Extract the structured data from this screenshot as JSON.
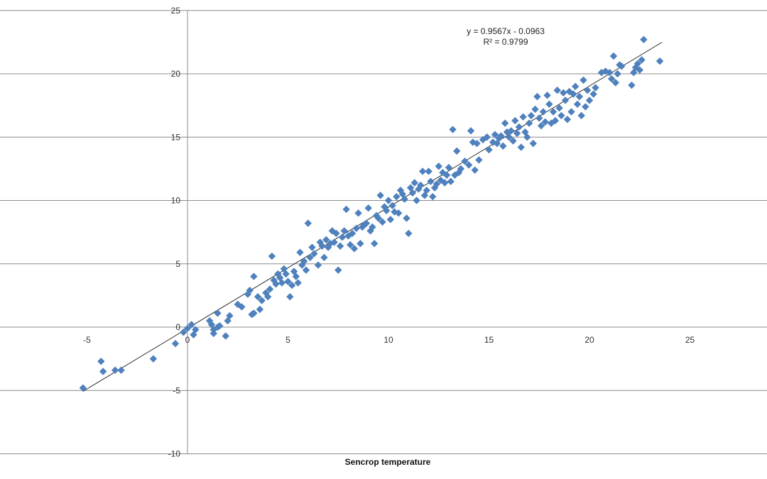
{
  "chart_data": {
    "type": "scatter",
    "title": "",
    "xlabel": "Sencrop temperature",
    "ylabel": "",
    "xlim": [
      -10,
      30
    ],
    "ylim": [
      -10,
      25
    ],
    "x_tick_labels": [
      "-5",
      "0",
      "5",
      "10",
      "15",
      "20",
      "25"
    ],
    "y_tick_labels": [
      "-10",
      "-5",
      "0",
      "5",
      "10",
      "15",
      "20",
      "25"
    ],
    "grid": "horizontal",
    "legend": "none",
    "marker": "diamond",
    "marker_color": "#4F81BD",
    "trendline": {
      "type": "linear",
      "slope": 0.9567,
      "intercept": -0.0963,
      "equation_label": "y = 0.9567x - 0.0963",
      "r2_label": "R² = 0.9799",
      "x_range": [
        -5.2,
        23.6
      ],
      "color": "#333333"
    },
    "series": [
      {
        "points": [
          [
            -5.2,
            -4.8
          ],
          [
            -4.3,
            -2.7
          ],
          [
            -4.2,
            -3.5
          ],
          [
            -3.6,
            -3.4
          ],
          [
            -3.3,
            -3.4
          ],
          [
            -1.7,
            -2.5
          ],
          [
            -0.6,
            -1.3
          ],
          [
            -0.2,
            -0.4
          ],
          [
            0.0,
            -0.1
          ],
          [
            0.2,
            0.2
          ],
          [
            0.3,
            -0.6
          ],
          [
            0.4,
            -0.2
          ],
          [
            1.1,
            0.5
          ],
          [
            1.2,
            0.2
          ],
          [
            1.3,
            -0.2
          ],
          [
            1.3,
            -0.5
          ],
          [
            1.5,
            1.1
          ],
          [
            1.5,
            0.0
          ],
          [
            1.6,
            0.1
          ],
          [
            1.9,
            -0.7
          ],
          [
            2.0,
            0.5
          ],
          [
            2.1,
            0.9
          ],
          [
            2.5,
            1.8
          ],
          [
            2.7,
            1.6
          ],
          [
            3.0,
            2.6
          ],
          [
            3.1,
            2.9
          ],
          [
            3.2,
            1.0
          ],
          [
            3.3,
            1.1
          ],
          [
            3.3,
            4.0
          ],
          [
            3.5,
            2.4
          ],
          [
            3.6,
            1.4
          ],
          [
            3.7,
            2.1
          ],
          [
            3.9,
            2.7
          ],
          [
            4.0,
            2.4
          ],
          [
            4.1,
            3.0
          ],
          [
            4.2,
            5.6
          ],
          [
            4.3,
            3.7
          ],
          [
            4.4,
            3.4
          ],
          [
            4.5,
            4.2
          ],
          [
            4.6,
            3.9
          ],
          [
            4.7,
            3.5
          ],
          [
            4.8,
            4.6
          ],
          [
            4.9,
            4.2
          ],
          [
            5.0,
            3.6
          ],
          [
            5.1,
            2.4
          ],
          [
            5.2,
            3.3
          ],
          [
            5.3,
            4.4
          ],
          [
            5.4,
            4.0
          ],
          [
            5.5,
            3.5
          ],
          [
            5.6,
            5.9
          ],
          [
            5.7,
            4.9
          ],
          [
            5.8,
            5.2
          ],
          [
            5.9,
            4.5
          ],
          [
            6.0,
            8.2
          ],
          [
            6.1,
            5.5
          ],
          [
            6.2,
            6.3
          ],
          [
            6.3,
            5.8
          ],
          [
            6.5,
            4.9
          ],
          [
            6.6,
            6.7
          ],
          [
            6.7,
            6.4
          ],
          [
            6.8,
            5.5
          ],
          [
            6.9,
            6.9
          ],
          [
            7.0,
            6.3
          ],
          [
            7.1,
            6.6
          ],
          [
            7.2,
            7.6
          ],
          [
            7.3,
            6.7
          ],
          [
            7.4,
            7.4
          ],
          [
            7.5,
            4.5
          ],
          [
            7.6,
            6.4
          ],
          [
            7.7,
            7.1
          ],
          [
            7.8,
            7.6
          ],
          [
            7.9,
            9.3
          ],
          [
            8.0,
            7.2
          ],
          [
            8.1,
            6.5
          ],
          [
            8.2,
            7.4
          ],
          [
            8.3,
            6.2
          ],
          [
            8.4,
            7.8
          ],
          [
            8.5,
            9.0
          ],
          [
            8.6,
            6.6
          ],
          [
            8.7,
            7.9
          ],
          [
            8.8,
            8.1
          ],
          [
            8.9,
            8.2
          ],
          [
            9.0,
            9.4
          ],
          [
            9.1,
            7.6
          ],
          [
            9.2,
            7.9
          ],
          [
            9.3,
            6.6
          ],
          [
            9.4,
            8.8
          ],
          [
            9.5,
            8.6
          ],
          [
            9.6,
            10.4
          ],
          [
            9.7,
            8.3
          ],
          [
            9.8,
            9.5
          ],
          [
            9.9,
            9.2
          ],
          [
            10.0,
            10.0
          ],
          [
            10.1,
            8.5
          ],
          [
            10.2,
            9.6
          ],
          [
            10.3,
            9.1
          ],
          [
            10.4,
            10.3
          ],
          [
            10.5,
            9.0
          ],
          [
            10.6,
            10.8
          ],
          [
            10.7,
            10.5
          ],
          [
            10.8,
            10.1
          ],
          [
            10.9,
            8.6
          ],
          [
            11.0,
            7.4
          ],
          [
            11.1,
            11.0
          ],
          [
            11.2,
            10.6
          ],
          [
            11.3,
            11.4
          ],
          [
            11.4,
            10.0
          ],
          [
            11.5,
            10.9
          ],
          [
            11.6,
            11.2
          ],
          [
            11.7,
            12.3
          ],
          [
            11.8,
            10.4
          ],
          [
            11.9,
            10.8
          ],
          [
            12.0,
            12.3
          ],
          [
            12.1,
            11.5
          ],
          [
            12.2,
            10.3
          ],
          [
            12.3,
            11.0
          ],
          [
            12.4,
            11.3
          ],
          [
            12.5,
            12.7
          ],
          [
            12.6,
            11.6
          ],
          [
            12.7,
            12.2
          ],
          [
            12.8,
            11.4
          ],
          [
            12.9,
            12.0
          ],
          [
            13.0,
            12.6
          ],
          [
            13.1,
            11.5
          ],
          [
            13.2,
            15.6
          ],
          [
            13.3,
            12.0
          ],
          [
            13.4,
            13.9
          ],
          [
            13.5,
            12.2
          ],
          [
            13.6,
            12.5
          ],
          [
            13.8,
            13.1
          ],
          [
            14.0,
            12.8
          ],
          [
            14.1,
            15.5
          ],
          [
            14.2,
            14.6
          ],
          [
            14.3,
            12.4
          ],
          [
            14.4,
            14.5
          ],
          [
            14.5,
            13.2
          ],
          [
            14.7,
            14.8
          ],
          [
            14.9,
            15.0
          ],
          [
            15.0,
            14.0
          ],
          [
            15.2,
            14.6
          ],
          [
            15.3,
            15.2
          ],
          [
            15.4,
            14.5
          ],
          [
            15.5,
            14.9
          ],
          [
            15.6,
            15.1
          ],
          [
            15.7,
            14.3
          ],
          [
            15.8,
            16.1
          ],
          [
            15.9,
            15.4
          ],
          [
            16.0,
            15.0
          ],
          [
            16.1,
            15.5
          ],
          [
            16.2,
            14.7
          ],
          [
            16.3,
            16.3
          ],
          [
            16.4,
            15.3
          ],
          [
            16.5,
            15.8
          ],
          [
            16.6,
            14.2
          ],
          [
            16.7,
            16.6
          ],
          [
            16.8,
            15.4
          ],
          [
            16.9,
            15.0
          ],
          [
            17.0,
            16.1
          ],
          [
            17.1,
            16.7
          ],
          [
            17.2,
            14.5
          ],
          [
            17.3,
            17.2
          ],
          [
            17.4,
            18.2
          ],
          [
            17.5,
            16.5
          ],
          [
            17.6,
            15.9
          ],
          [
            17.7,
            17.0
          ],
          [
            17.8,
            16.2
          ],
          [
            17.9,
            18.3
          ],
          [
            18.0,
            17.6
          ],
          [
            18.1,
            16.1
          ],
          [
            18.2,
            17.0
          ],
          [
            18.3,
            16.3
          ],
          [
            18.4,
            18.7
          ],
          [
            18.5,
            17.3
          ],
          [
            18.6,
            16.7
          ],
          [
            18.7,
            18.5
          ],
          [
            18.8,
            17.9
          ],
          [
            18.9,
            16.4
          ],
          [
            19.0,
            18.6
          ],
          [
            19.1,
            17.0
          ],
          [
            19.2,
            18.4
          ],
          [
            19.3,
            19.0
          ],
          [
            19.4,
            17.6
          ],
          [
            19.5,
            18.2
          ],
          [
            19.6,
            16.7
          ],
          [
            19.7,
            19.5
          ],
          [
            19.8,
            17.4
          ],
          [
            19.9,
            18.7
          ],
          [
            20.0,
            17.9
          ],
          [
            20.2,
            18.4
          ],
          [
            20.3,
            18.9
          ],
          [
            20.6,
            20.1
          ],
          [
            20.8,
            20.2
          ],
          [
            21.0,
            20.1
          ],
          [
            21.1,
            19.6
          ],
          [
            21.2,
            21.4
          ],
          [
            21.3,
            19.3
          ],
          [
            21.4,
            20.0
          ],
          [
            21.5,
            20.7
          ],
          [
            21.6,
            20.6
          ],
          [
            22.1,
            19.1
          ],
          [
            22.2,
            20.1
          ],
          [
            22.3,
            20.5
          ],
          [
            22.4,
            20.8
          ],
          [
            22.5,
            20.3
          ],
          [
            22.6,
            21.1
          ],
          [
            22.7,
            22.7
          ],
          [
            23.5,
            21.0
          ]
        ]
      }
    ]
  }
}
